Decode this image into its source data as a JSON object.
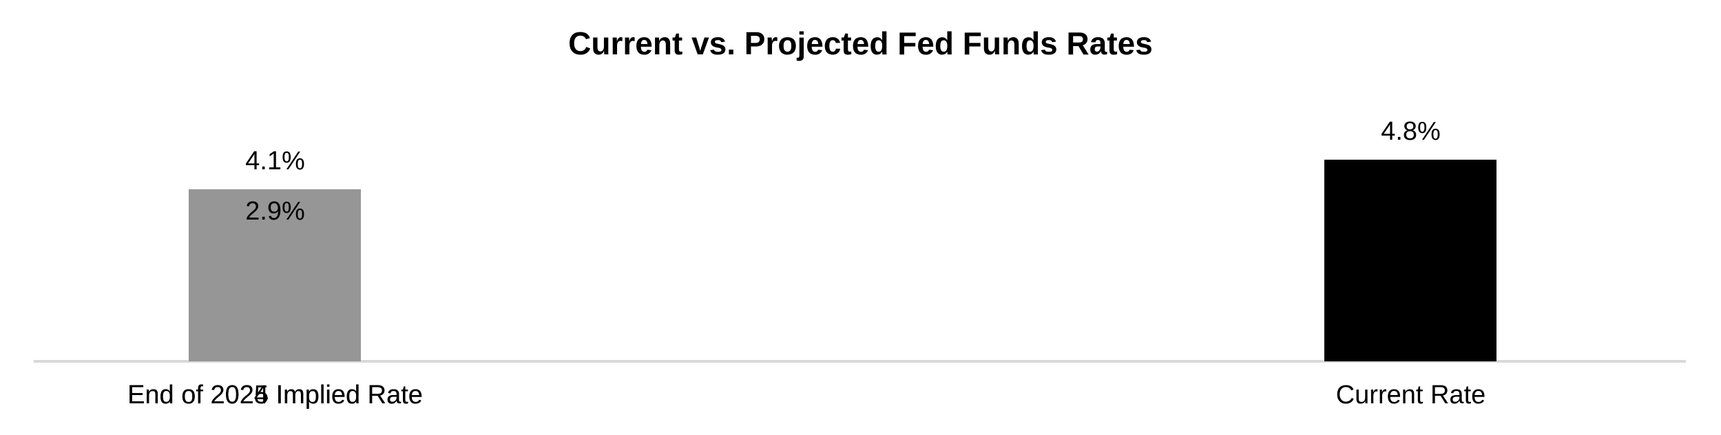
{
  "page": {
    "background": "#ffffff"
  },
  "chart_data": {
    "type": "bar",
    "title": "Current vs. Projected Fed Funds Rates",
    "categories": [
      "Current Rate",
      "End of 2024 Implied Rate",
      "End of 2025 Implied Rate"
    ],
    "values": [
      4.8,
      4.1,
      2.9
    ],
    "value_unit": "%",
    "data_labels": [
      "4.8%",
      "4.1%",
      "2.9%"
    ],
    "bar_colors": [
      "#000000",
      "#969696",
      "#969696"
    ],
    "xlabel": "",
    "ylabel": "",
    "ylim": [
      0,
      6
    ],
    "grid": false,
    "legend": false,
    "y_axis_visible": false,
    "axis_line_color": "#d9d9d9",
    "title_color": "#000000",
    "label_color": "#000000"
  }
}
